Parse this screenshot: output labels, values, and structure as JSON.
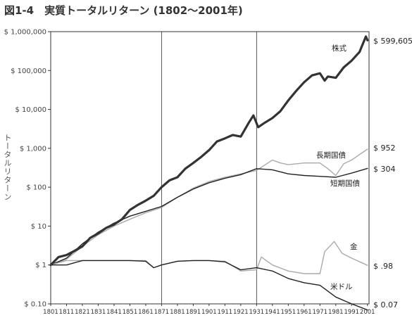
{
  "title": "図1-4　実質トータルリターン (1802～2001年)",
  "chart_data": {
    "type": "line",
    "title": "図1-4　実質トータルリターン (1802～2001年)",
    "xlabel": "",
    "ylabel": "トータルリターン",
    "yscale": "log",
    "ylim": [
      0.1,
      1000000
    ],
    "xlim": [
      1801,
      2002
    ],
    "grid": "vertical lines at 1871 and 1931",
    "y_tick_labels": [
      "$ 1,000,000",
      "$ 100,000",
      "$ 10,000",
      "$ 1,000",
      "$ 100",
      "$ 10",
      "$ 1",
      "$ 0.10"
    ],
    "x_tick_labels": [
      "1801",
      "1811",
      "1821",
      "1831",
      "1841",
      "1851",
      "1861",
      "1871",
      "1881",
      "1891",
      "1901",
      "1911",
      "1921",
      "1931",
      "1941",
      "1951",
      "1961",
      "1971",
      "1981",
      "1991",
      "2001"
    ],
    "series": [
      {
        "name": "株式",
        "end_label": "$ 599,605",
        "color": "#333333",
        "width": 3.2,
        "x": [
          1801,
          1806,
          1811,
          1816,
          1821,
          1826,
          1831,
          1836,
          1841,
          1846,
          1851,
          1856,
          1861,
          1866,
          1871,
          1876,
          1881,
          1886,
          1891,
          1896,
          1901,
          1906,
          1911,
          1916,
          1921,
          1926,
          1929,
          1932,
          1936,
          1941,
          1946,
          1951,
          1956,
          1961,
          1966,
          1971,
          1974,
          1976,
          1981,
          1986,
          1991,
          1996,
          2000,
          2001
        ],
        "y": [
          1,
          1.6,
          1.8,
          2.3,
          3,
          5,
          6.5,
          9,
          11,
          15,
          26,
          35,
          45,
          60,
          100,
          150,
          180,
          300,
          420,
          600,
          900,
          1500,
          1800,
          2200,
          2000,
          4500,
          7000,
          3500,
          4500,
          6000,
          9000,
          17000,
          30000,
          50000,
          75000,
          85000,
          55000,
          70000,
          65000,
          120000,
          180000,
          300000,
          750000,
          599605
        ]
      },
      {
        "name": "長期国債",
        "end_label": "$ 952",
        "color": "#aaaaaa",
        "width": 1.4,
        "x": [
          1801,
          1811,
          1821,
          1831,
          1841,
          1851,
          1861,
          1871,
          1881,
          1891,
          1901,
          1911,
          1921,
          1931,
          1941,
          1946,
          1951,
          1961,
          1971,
          1976,
          1981,
          1986,
          1991,
          2001
        ],
        "y": [
          1,
          1.4,
          3,
          6,
          10,
          15,
          22,
          30,
          55,
          95,
          140,
          180,
          220,
          270,
          500,
          420,
          380,
          420,
          420,
          300,
          200,
          400,
          500,
          952
        ]
      },
      {
        "name": "短期国債",
        "end_label": "$ 304",
        "color": "#222222",
        "width": 1.4,
        "x": [
          1801,
          1811,
          1821,
          1831,
          1841,
          1851,
          1861,
          1871,
          1881,
          1891,
          1901,
          1911,
          1921,
          1931,
          1941,
          1951,
          1961,
          1971,
          1981,
          1991,
          2001
        ],
        "y": [
          1,
          1.5,
          3.5,
          7,
          12,
          18,
          24,
          32,
          55,
          90,
          130,
          170,
          210,
          300,
          280,
          220,
          200,
          190,
          180,
          230,
          304
        ]
      },
      {
        "name": "金",
        "end_label": "$ .98",
        "color": "#aaaaaa",
        "width": 1.4,
        "x": [
          1801,
          1811,
          1821,
          1831,
          1841,
          1851,
          1861,
          1866,
          1871,
          1881,
          1891,
          1901,
          1911,
          1921,
          1931,
          1934,
          1941,
          1951,
          1961,
          1971,
          1974,
          1980,
          1985,
          1991,
          2001
        ],
        "y": [
          1,
          1.3,
          1.3,
          1.3,
          1.3,
          1.3,
          1.3,
          0.85,
          1.0,
          1.25,
          1.3,
          1.3,
          1.25,
          0.7,
          0.75,
          1.6,
          1.0,
          0.7,
          0.6,
          0.6,
          2.2,
          4.0,
          2.0,
          1.5,
          0.98
        ]
      },
      {
        "name": "米ドル",
        "end_label": "$ 0.07",
        "color": "#222222",
        "width": 1.4,
        "x": [
          1801,
          1811,
          1821,
          1831,
          1841,
          1851,
          1861,
          1866,
          1871,
          1881,
          1891,
          1901,
          1911,
          1921,
          1931,
          1941,
          1951,
          1961,
          1971,
          1981,
          1991,
          2001
        ],
        "y": [
          1,
          1.0,
          1.3,
          1.3,
          1.3,
          1.3,
          1.25,
          0.85,
          1.0,
          1.25,
          1.3,
          1.3,
          1.2,
          0.75,
          0.85,
          0.7,
          0.45,
          0.35,
          0.3,
          0.15,
          0.1,
          0.07
        ]
      }
    ]
  }
}
